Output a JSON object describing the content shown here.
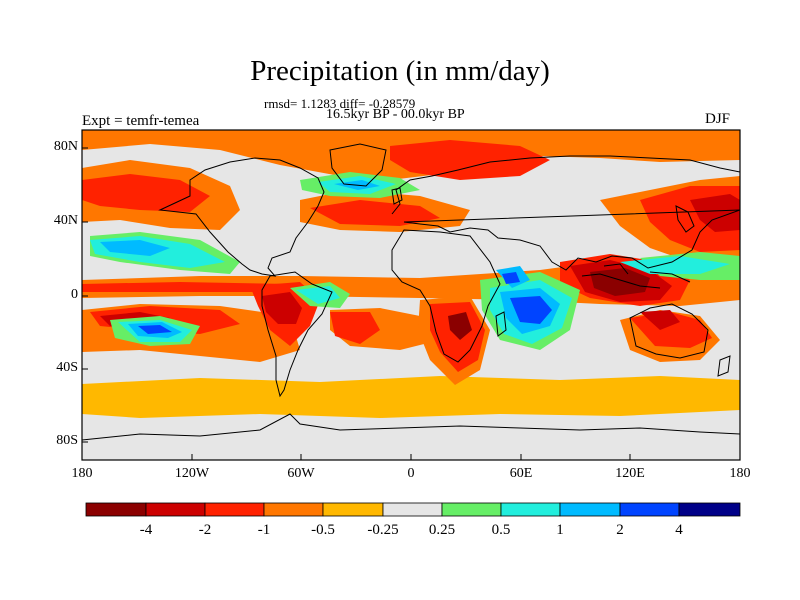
{
  "header": {
    "title": "Precipitation (in mm/day)",
    "stats": "rmsd= 1.1283 diff= -0.28579",
    "period": "16.5kyr BP - 00.0kyr BP",
    "experiment": "Expt = temfr-temea",
    "season": "DJF"
  },
  "axes": {
    "lat_labels": [
      "80N",
      "40N",
      "0",
      "40S",
      "80S"
    ],
    "lon_labels": [
      "180",
      "120W",
      "60W",
      "0",
      "60E",
      "120E",
      "180"
    ]
  },
  "colorbar": {
    "labels": [
      "-4",
      "-2",
      "-1",
      "-0.5",
      "-0.25",
      "0.25",
      "0.5",
      "1",
      "2",
      "4"
    ],
    "colors": [
      "#8b0000",
      "#cc0000",
      "#ff2200",
      "#ff7700",
      "#ffb800",
      "#e6e6e6",
      "#66ee66",
      "#22eedd",
      "#00bbff",
      "#0044ff",
      "#000088"
    ]
  },
  "palette": {
    "neutral": "#e6e6e6",
    "light_dry": "#ffb800",
    "dry": "#ff7700",
    "drier": "#ff2200",
    "very_dry": "#cc0000",
    "extreme_dry": "#8b0000",
    "light_wet": "#66ee66",
    "wet": "#22eedd",
    "wetter": "#00bbff",
    "very_wet": "#0044ff",
    "extreme_wet": "#000088",
    "coast": "#000000"
  }
}
